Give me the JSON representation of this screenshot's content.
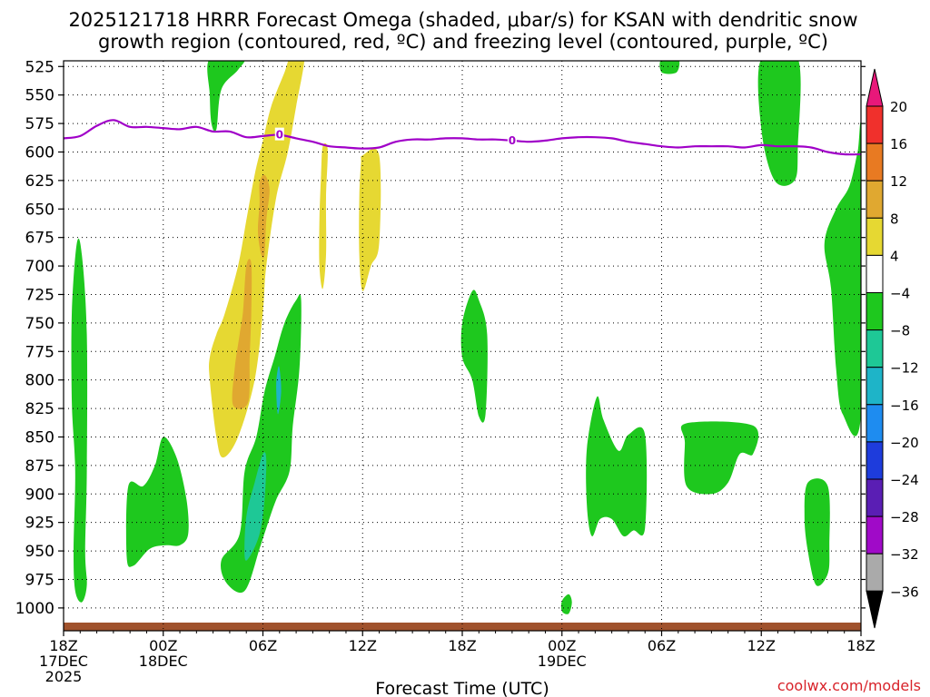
{
  "chart_data": {
    "type": "heatmap",
    "title_line1": "2025121718 HRRR Forecast Omega (shaded, μbar/s) for KSAN with dendritic snow",
    "title_line2": "growth region (contoured, red, ºC) and freezing level (contoured, purple, ºC)",
    "xlabel": "Forecast Time (UTC)",
    "watermark": "coolwx.com/models",
    "y_axis": {
      "label": "",
      "scale": "pressure (hPa), increasing downward",
      "range": [
        1020,
        520
      ],
      "ticks": [
        "525",
        "550",
        "575",
        "600",
        "625",
        "650",
        "675",
        "700",
        "725",
        "750",
        "775",
        "800",
        "825",
        "850",
        "875",
        "900",
        "925",
        "950",
        "975",
        "1000"
      ]
    },
    "x_axis": {
      "range_hours": [
        0,
        48
      ],
      "ticks": [
        {
          "h": 0,
          "lines": [
            "18Z",
            "17DEC",
            "2025"
          ]
        },
        {
          "h": 6,
          "lines": [
            "00Z",
            "18DEC"
          ]
        },
        {
          "h": 12,
          "lines": [
            "06Z"
          ]
        },
        {
          "h": 18,
          "lines": [
            "12Z"
          ]
        },
        {
          "h": 24,
          "lines": [
            "18Z"
          ]
        },
        {
          "h": 30,
          "lines": [
            "00Z",
            "19DEC"
          ]
        },
        {
          "h": 36,
          "lines": [
            "06Z"
          ]
        },
        {
          "h": 42,
          "lines": [
            "12Z"
          ]
        },
        {
          "h": 48,
          "lines": [
            "18Z"
          ]
        }
      ]
    },
    "grid": true,
    "colorbar": {
      "placement": "right",
      "labels": [
        "20",
        "16",
        "12",
        "8",
        "4",
        "−4",
        "−8",
        "−12",
        "−16",
        "−20",
        "−24",
        "−28",
        "−32",
        "−36"
      ],
      "colors": {
        "gt20": "#e8187a",
        "16_20": "#f0302c",
        "12_16": "#e87a22",
        "8_12": "#e0a830",
        "4_8": "#e6d832",
        "m4_4": "#ffffff",
        "m8_m4": "#1ec81e",
        "m12_m8": "#1ec896",
        "m16_m12": "#1eb4c8",
        "m20_m16": "#1e8cf0",
        "m24_m20": "#1e3cdc",
        "m28_m24": "#5a1eb4",
        "m32_m28": "#a00ac8",
        "m36_m32": "#aaaaaa",
        "lt36": "#000000"
      }
    },
    "freezing_level": {
      "color": "#a000c8",
      "contour_label": "0",
      "points": [
        [
          0,
          588
        ],
        [
          1,
          586
        ],
        [
          2,
          577
        ],
        [
          3,
          572
        ],
        [
          4,
          578
        ],
        [
          5,
          578
        ],
        [
          6,
          579
        ],
        [
          7,
          580
        ],
        [
          8,
          578
        ],
        [
          9,
          582
        ],
        [
          10,
          582
        ],
        [
          11,
          587
        ],
        [
          12,
          586
        ],
        [
          13,
          585
        ],
        [
          14,
          588
        ],
        [
          15,
          591
        ],
        [
          16,
          595
        ],
        [
          17,
          596
        ],
        [
          18,
          597
        ],
        [
          19,
          596
        ],
        [
          20,
          591
        ],
        [
          21,
          589
        ],
        [
          22,
          589
        ],
        [
          23,
          588
        ],
        [
          24,
          588
        ],
        [
          25,
          589
        ],
        [
          26,
          589
        ],
        [
          27,
          590
        ],
        [
          28,
          591
        ],
        [
          29,
          590
        ],
        [
          30,
          588
        ],
        [
          31,
          587
        ],
        [
          32,
          587
        ],
        [
          33,
          588
        ],
        [
          34,
          591
        ],
        [
          35,
          593
        ],
        [
          36,
          595
        ],
        [
          37,
          596
        ],
        [
          38,
          595
        ],
        [
          39,
          595
        ],
        [
          40,
          595
        ],
        [
          41,
          596
        ],
        [
          42,
          594
        ],
        [
          43,
          595
        ],
        [
          44,
          595
        ],
        [
          45,
          596
        ],
        [
          46,
          600
        ],
        [
          47,
          602
        ],
        [
          48,
          602
        ]
      ]
    },
    "omega_regions": [
      {
        "color": "#1ec81e",
        "points": [
          [
            8.8,
            518
          ],
          [
            10.8,
            518
          ],
          [
            10.5,
            528
          ],
          [
            9.5,
            545
          ],
          [
            9.2,
            580
          ],
          [
            8.9,
            575
          ],
          [
            8.8,
            550
          ]
        ]
      },
      {
        "color": "#e6d832",
        "points": [
          [
            14.0,
            518
          ],
          [
            14.5,
            518
          ],
          [
            14.0,
            560
          ],
          [
            13.5,
            600
          ],
          [
            12.8,
            640
          ],
          [
            12.2,
            700
          ],
          [
            12.0,
            740
          ],
          [
            11.5,
            800
          ],
          [
            10.5,
            850
          ],
          [
            9.6,
            868
          ],
          [
            9.2,
            850
          ],
          [
            8.8,
            800
          ],
          [
            8.8,
            780
          ],
          [
            9.2,
            760
          ],
          [
            9.7,
            742
          ],
          [
            10.5,
            700
          ],
          [
            11.0,
            660
          ],
          [
            11.5,
            620
          ],
          [
            12.0,
            590
          ],
          [
            12.5,
            560
          ],
          [
            13.3,
            530
          ],
          [
            13.6,
            518
          ]
        ]
      },
      {
        "color": "#e0a830",
        "points": [
          [
            11.8,
            627
          ],
          [
            12.1,
            620
          ],
          [
            12.4,
            633
          ],
          [
            12.2,
            660
          ],
          [
            12.1,
            690
          ],
          [
            11.9,
            690
          ],
          [
            11.7,
            670
          ],
          [
            11.8,
            645
          ]
        ]
      },
      {
        "color": "#e0a830",
        "points": [
          [
            11.0,
            700
          ],
          [
            11.3,
            698
          ],
          [
            11.3,
            740
          ],
          [
            11.2,
            780
          ],
          [
            11.1,
            820
          ],
          [
            10.2,
            822
          ],
          [
            10.3,
            790
          ],
          [
            10.6,
            760
          ],
          [
            10.8,
            740
          ]
        ]
      },
      {
        "color": "#e6d832",
        "points": [
          [
            15.6,
            595
          ],
          [
            15.9,
            598
          ],
          [
            15.8,
            640
          ],
          [
            15.8,
            690
          ],
          [
            15.6,
            720
          ],
          [
            15.4,
            700
          ],
          [
            15.4,
            660
          ],
          [
            15.5,
            620
          ]
        ]
      },
      {
        "color": "#e6d832",
        "points": [
          [
            18.0,
            603
          ],
          [
            19.0,
            603
          ],
          [
            19.0,
            680
          ],
          [
            18.5,
            700
          ],
          [
            18.0,
            722
          ],
          [
            17.8,
            690
          ],
          [
            17.8,
            640
          ],
          [
            17.9,
            610
          ]
        ]
      },
      {
        "color": "#1ec81e",
        "points": [
          [
            14.0,
            730
          ],
          [
            14.3,
            730
          ],
          [
            14.2,
            790
          ],
          [
            13.8,
            840
          ],
          [
            13.6,
            880
          ],
          [
            12.8,
            905
          ],
          [
            12.2,
            930
          ],
          [
            11.8,
            948
          ],
          [
            10.9,
            985
          ],
          [
            9.8,
            978
          ],
          [
            9.5,
            958
          ],
          [
            10.6,
            935
          ],
          [
            10.9,
            880
          ],
          [
            11.6,
            850
          ],
          [
            12.1,
            810
          ],
          [
            12.7,
            780
          ],
          [
            13.3,
            750
          ]
        ]
      },
      {
        "color": "#1ec896",
        "points": [
          [
            12.0,
            865
          ],
          [
            12.2,
            870
          ],
          [
            12.1,
            905
          ],
          [
            11.8,
            935
          ],
          [
            11.2,
            955
          ],
          [
            10.9,
            955
          ],
          [
            11.0,
            920
          ],
          [
            11.5,
            890
          ]
        ]
      },
      {
        "color": "#1eb4c8",
        "points": [
          [
            12.9,
            790
          ],
          [
            13.0,
            790
          ],
          [
            13.1,
            810
          ],
          [
            12.9,
            830
          ],
          [
            12.8,
            805
          ]
        ]
      },
      {
        "color": "#1ec81e",
        "points": [
          [
            0.8,
            680
          ],
          [
            1.1,
            690
          ],
          [
            1.4,
            760
          ],
          [
            1.4,
            880
          ],
          [
            1.3,
            950
          ],
          [
            1.4,
            980
          ],
          [
            1.1,
            995
          ],
          [
            0.7,
            985
          ],
          [
            0.6,
            950
          ],
          [
            0.7,
            880
          ],
          [
            0.5,
            820
          ],
          [
            0.5,
            740
          ]
        ]
      },
      {
        "color": "#1ec81e",
        "points": [
          [
            6.0,
            850
          ],
          [
            6.8,
            868
          ],
          [
            7.4,
            905
          ],
          [
            7.5,
            935
          ],
          [
            7.0,
            945
          ],
          [
            6.2,
            945
          ],
          [
            5.2,
            948
          ],
          [
            4.2,
            963
          ],
          [
            3.8,
            955
          ],
          [
            3.9,
            893
          ],
          [
            4.8,
            893
          ],
          [
            5.5,
            875
          ]
        ]
      },
      {
        "color": "#1ec81e",
        "points": [
          [
            24.6,
            722
          ],
          [
            25.0,
            730
          ],
          [
            25.5,
            760
          ],
          [
            25.4,
            830
          ],
          [
            25.0,
            832
          ],
          [
            24.6,
            800
          ],
          [
            24.0,
            780
          ],
          [
            24.0,
            750
          ]
        ]
      },
      {
        "color": "#1ec81e",
        "points": [
          [
            32.1,
            815
          ],
          [
            32.5,
            835
          ],
          [
            33.4,
            862
          ],
          [
            34.0,
            848
          ],
          [
            35.0,
            848
          ],
          [
            35.0,
            930
          ],
          [
            34.3,
            932
          ],
          [
            33.7,
            937
          ],
          [
            33.0,
            922
          ],
          [
            32.3,
            922
          ],
          [
            31.8,
            937
          ],
          [
            31.5,
            910
          ],
          [
            31.5,
            860
          ]
        ]
      },
      {
        "color": "#1ec81e",
        "points": [
          [
            37.5,
            838
          ],
          [
            41.5,
            840
          ],
          [
            41.5,
            865
          ],
          [
            40.7,
            865
          ],
          [
            40.0,
            890
          ],
          [
            39.0,
            900
          ],
          [
            37.5,
            893
          ],
          [
            37.4,
            855
          ]
        ]
      },
      {
        "color": "#1ec81e",
        "points": [
          [
            30.4,
            988
          ],
          [
            30.6,
            995
          ],
          [
            30.4,
            1005
          ],
          [
            30.0,
            1003
          ],
          [
            30.0,
            994
          ]
        ]
      },
      {
        "color": "#1ec81e",
        "points": [
          [
            36.0,
            518
          ],
          [
            37.0,
            518
          ],
          [
            36.9,
            530
          ],
          [
            36.0,
            530
          ]
        ]
      },
      {
        "color": "#1ec81e",
        "points": [
          [
            42.0,
            518
          ],
          [
            44.2,
            518
          ],
          [
            44.2,
            595
          ],
          [
            44.0,
            625
          ],
          [
            42.8,
            625
          ],
          [
            42.0,
            580
          ]
        ]
      },
      {
        "color": "#1ec81e",
        "points": [
          [
            48.0,
            590
          ],
          [
            48.0,
            830
          ],
          [
            46.9,
            830
          ],
          [
            46.5,
            790
          ],
          [
            46.2,
            720
          ],
          [
            45.8,
            680
          ],
          [
            46.5,
            650
          ],
          [
            47.3,
            630
          ],
          [
            47.8,
            600
          ]
        ]
      },
      {
        "color": "#1ec81e",
        "points": [
          [
            44.8,
            890
          ],
          [
            46.0,
            893
          ],
          [
            46.1,
            945
          ],
          [
            46.0,
            970
          ],
          [
            45.3,
            980
          ],
          [
            44.8,
            950
          ],
          [
            44.6,
            920
          ]
        ]
      }
    ]
  }
}
